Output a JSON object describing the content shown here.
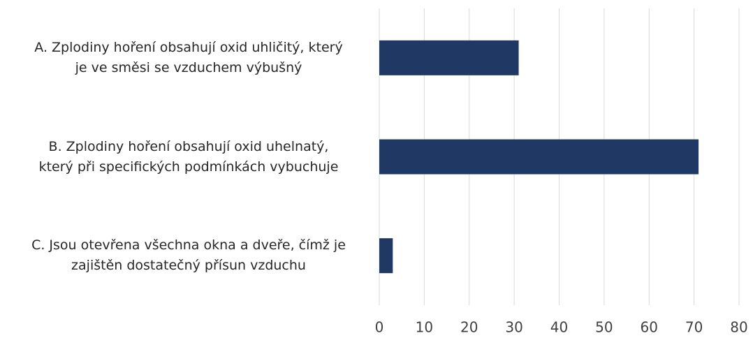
{
  "chart_data": {
    "type": "bar",
    "orientation": "horizontal",
    "categories": [
      "A. Zplodiny hoření obsahují oxid uhličitý, který\nje ve směsi se vzduchem výbušný",
      "B. Zplodiny hoření obsahují oxid uhelnatý,\nkterý při specifických podmínkách vybuchuje",
      "C. Jsou otevřena všechna okna a dveře, čímž je\nzajištěn dostatečný přísun vzduchu"
    ],
    "values": [
      31,
      71,
      3
    ],
    "color": "#203864",
    "xlim": [
      0,
      80
    ],
    "xticks": [
      0,
      10,
      20,
      30,
      40,
      50,
      60,
      70,
      80
    ],
    "grid": true
  }
}
